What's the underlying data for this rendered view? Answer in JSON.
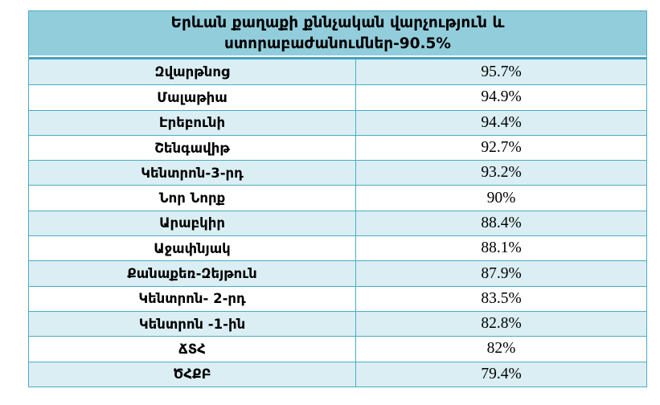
{
  "table": {
    "title_line1": "Երևան քաղաքի քննչական վարչություն և",
    "title_line2": "ստորաբաժանումներ-90.5%",
    "rows": [
      {
        "name": "Զվարթնոց",
        "value": "95.7%"
      },
      {
        "name": "Մալաթիա",
        "value": "94.9%"
      },
      {
        "name": "Էրեբունի",
        "value": "94.4%"
      },
      {
        "name": "Շենգավիթ",
        "value": "92.7%"
      },
      {
        "name": "Կենտրոն-3-րդ",
        "value": "93.2%"
      },
      {
        "name": "Նոր Նորք",
        "value": "90%"
      },
      {
        "name": "Արաբկիր",
        "value": "88.4%"
      },
      {
        "name": "Աջափնյակ",
        "value": "88.1%"
      },
      {
        "name": "Քանաքեռ-Զեյթուն",
        "value": "87.9%"
      },
      {
        "name": "Կենտրոն- 2-րդ",
        "value": "83.5%"
      },
      {
        "name": "Կենտրոն -1-ին",
        "value": "82.8%"
      },
      {
        "name": "ՃՏՀ",
        "value": "82%"
      },
      {
        "name": "ԾՀՔԲ",
        "value": "79.4%"
      }
    ]
  },
  "colors": {
    "header_bg": "#92CDDC",
    "row_alt_bg": "#DAEEF3",
    "row_bg": "#FFFFFF",
    "border": "#4BACC6",
    "header_divider": "#41A1BD",
    "text": "#000000"
  },
  "chart_data": {
    "type": "table",
    "title": "Երևան քաղաքի քննչական վարչություն և ստորաբաժանումներ-90.5%",
    "overall_percent": 90.5,
    "categories": [
      "Զվարթնոց",
      "Մալաթիա",
      "Էրեբունի",
      "Շենգավիթ",
      "Կենտրոն-3-րդ",
      "Նոր Նորք",
      "Արաբկիր",
      "Աջափնյակ",
      "Քանաքեռ-Զեյթուն",
      "Կենտրոն- 2-րդ",
      "Կենտրոն -1-ին",
      "ՃՏՀ",
      "ԾՀՔԲ"
    ],
    "values": [
      95.7,
      94.9,
      94.4,
      92.7,
      93.2,
      90,
      88.4,
      88.1,
      87.9,
      83.5,
      82.8,
      82,
      79.4
    ],
    "value_labels": [
      "95.7%",
      "94.9%",
      "94.4%",
      "92.7%",
      "93.2%",
      "90%",
      "88.4%",
      "88.1%",
      "87.9%",
      "83.5%",
      "82.8%",
      "82%",
      "79.4%"
    ],
    "columns": [
      "district",
      "clearance_rate"
    ],
    "layout": {
      "alternating_row_shading": true,
      "first_row_shaded": true
    }
  }
}
